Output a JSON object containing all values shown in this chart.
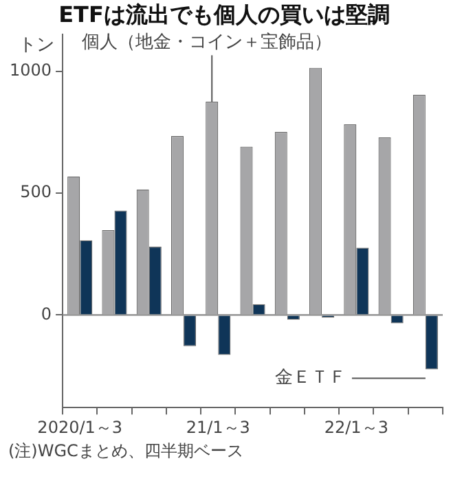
{
  "chart_data": {
    "type": "bar",
    "title": "ETFは流出でも個人の買いは堅調",
    "ylabel": "トン",
    "categories": [
      "2020/1～3",
      null,
      null,
      null,
      "21/1～3",
      null,
      null,
      null,
      "22/1～3",
      null,
      null
    ],
    "series": [
      {
        "name": "個人（地金・コイン＋宝飾品）",
        "color": "#a6a6a8",
        "values": [
          568,
          348,
          515,
          734,
          875,
          690,
          751,
          1014,
          782,
          728,
          903
        ]
      },
      {
        "name": "金ＥＴＦ",
        "color": "#0f3558",
        "values": [
          306,
          428,
          280,
          -128,
          -164,
          44,
          -19,
          -11,
          276,
          -34,
          -223
        ]
      }
    ],
    "ref_lines": [
      {
        "axis": "y",
        "value": 0,
        "color": "#888888"
      }
    ],
    "ylim": [
      -380,
      1150
    ],
    "yticks": [
      0,
      500,
      1000
    ],
    "grid": false,
    "legend": false,
    "annotations": [
      "(注)WGCまとめ、四半期ベース"
    ]
  }
}
